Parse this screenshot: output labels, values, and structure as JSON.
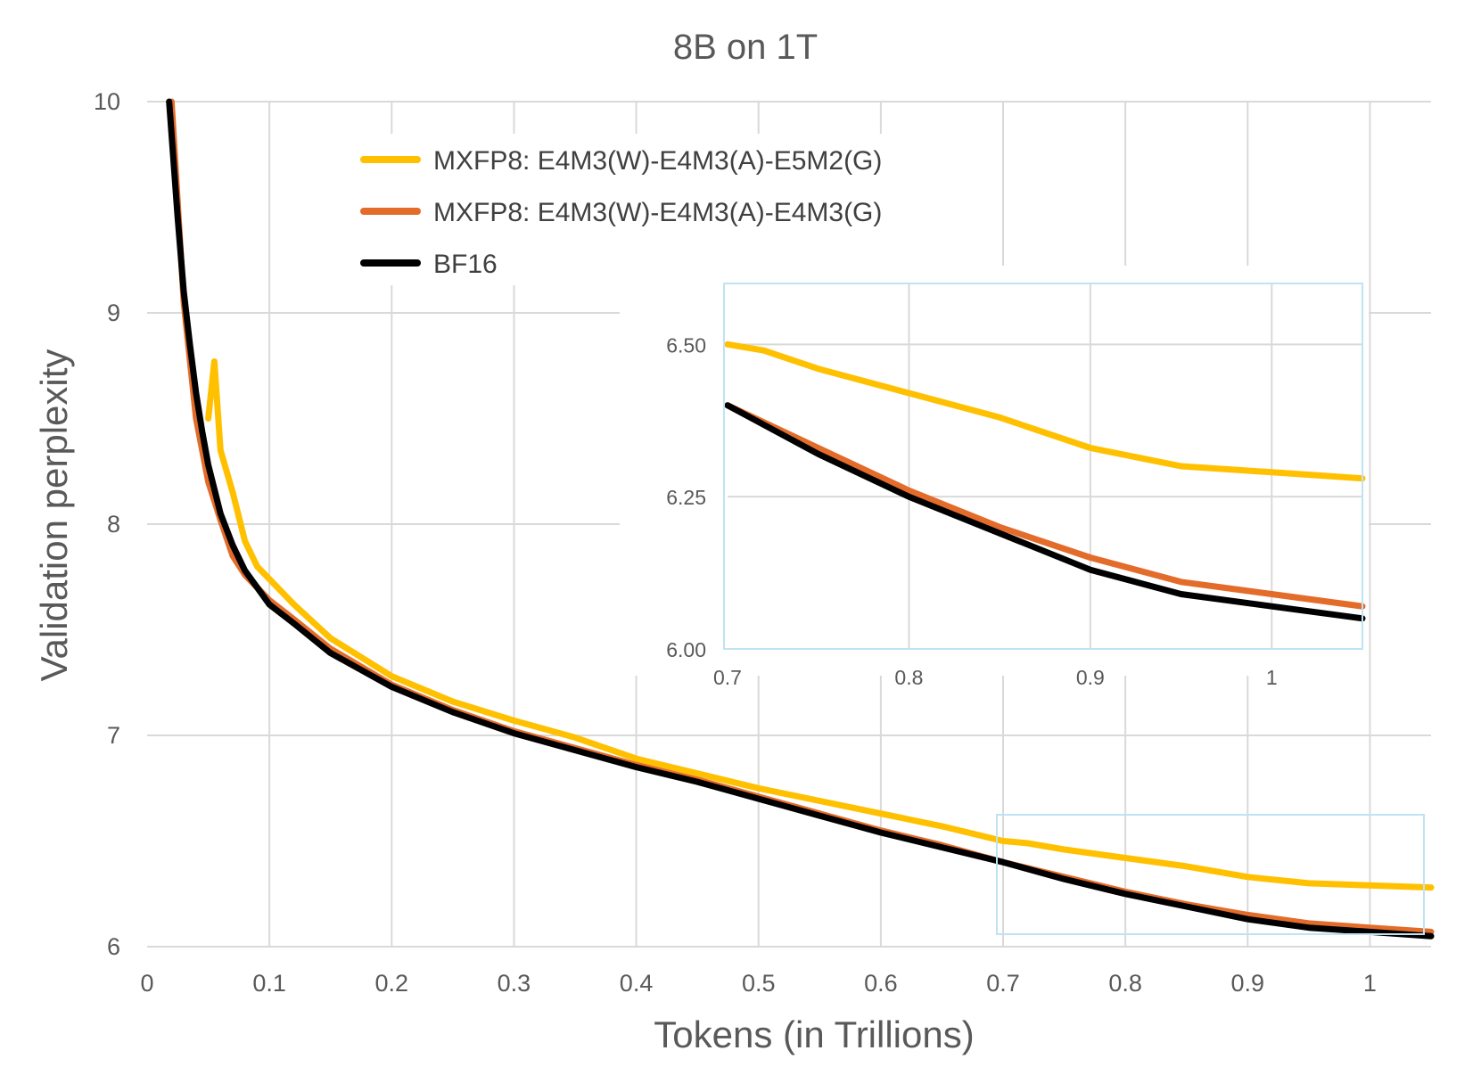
{
  "chart_data": {
    "type": "line",
    "title": "8B on 1T",
    "xlabel": "Tokens (in Trillions)",
    "ylabel": "Validation perplexity",
    "xlim": [
      0,
      1.05
    ],
    "ylim": [
      6,
      10
    ],
    "x_ticks": [
      "0",
      "0.1",
      "0.2",
      "0.3",
      "0.4",
      "0.5",
      "0.6",
      "0.7",
      "0.8",
      "0.9",
      "1"
    ],
    "y_ticks": [
      "6",
      "7",
      "8",
      "9",
      "10"
    ],
    "grid": true,
    "legend_position": "top-center",
    "series": [
      {
        "name": "MXFP8: E4M3(W)-E4M3(A)-E5M2(G)",
        "color": "#FFC000",
        "x": [
          0.05,
          0.055,
          0.06,
          0.07,
          0.08,
          0.09,
          0.1,
          0.12,
          0.15,
          0.2,
          0.25,
          0.3,
          0.35,
          0.4,
          0.45,
          0.5,
          0.55,
          0.6,
          0.65,
          0.7,
          0.72,
          0.75,
          0.8,
          0.85,
          0.9,
          0.95,
          1.0,
          1.05
        ],
        "y": [
          8.5,
          8.77,
          8.35,
          8.15,
          7.92,
          7.8,
          7.74,
          7.62,
          7.46,
          7.28,
          7.16,
          7.07,
          6.99,
          6.89,
          6.82,
          6.75,
          6.69,
          6.63,
          6.57,
          6.5,
          6.49,
          6.46,
          6.42,
          6.38,
          6.33,
          6.3,
          6.29,
          6.28
        ]
      },
      {
        "name": "MXFP8: E4M3(W)-E4M3(A)-E4M3(G)",
        "color": "#E46C2A",
        "x": [
          0.02,
          0.03,
          0.04,
          0.05,
          0.06,
          0.07,
          0.08,
          0.09,
          0.1,
          0.12,
          0.15,
          0.2,
          0.25,
          0.3,
          0.35,
          0.4,
          0.45,
          0.5,
          0.55,
          0.6,
          0.65,
          0.7,
          0.75,
          0.8,
          0.85,
          0.9,
          0.95,
          1.0,
          1.05
        ],
        "y": [
          10.0,
          9.05,
          8.5,
          8.2,
          8.02,
          7.85,
          7.76,
          7.7,
          7.64,
          7.55,
          7.41,
          7.24,
          7.12,
          7.02,
          6.94,
          6.86,
          6.79,
          6.71,
          6.63,
          6.55,
          6.48,
          6.4,
          6.33,
          6.26,
          6.2,
          6.15,
          6.11,
          6.09,
          6.07
        ]
      },
      {
        "name": "BF16",
        "color": "#000000",
        "x": [
          0.018,
          0.025,
          0.03,
          0.035,
          0.04,
          0.045,
          0.05,
          0.06,
          0.07,
          0.08,
          0.09,
          0.1,
          0.12,
          0.15,
          0.2,
          0.25,
          0.3,
          0.35,
          0.4,
          0.45,
          0.5,
          0.55,
          0.6,
          0.65,
          0.7,
          0.75,
          0.8,
          0.85,
          0.9,
          0.95,
          1.0,
          1.05
        ],
        "y": [
          10.0,
          9.45,
          9.1,
          8.85,
          8.62,
          8.44,
          8.28,
          8.05,
          7.9,
          7.78,
          7.7,
          7.62,
          7.53,
          7.39,
          7.23,
          7.11,
          7.01,
          6.93,
          6.85,
          6.78,
          6.7,
          6.62,
          6.54,
          6.47,
          6.4,
          6.32,
          6.25,
          6.19,
          6.13,
          6.09,
          6.07,
          6.05
        ]
      }
    ],
    "inset": {
      "xlim": [
        0.7,
        1.05
      ],
      "ylim": [
        6.0,
        6.6
      ],
      "x_ticks": [
        "0.7",
        "0.8",
        "0.9",
        "1"
      ],
      "y_ticks": [
        "6.00",
        "6.25",
        "6.50"
      ]
    }
  }
}
